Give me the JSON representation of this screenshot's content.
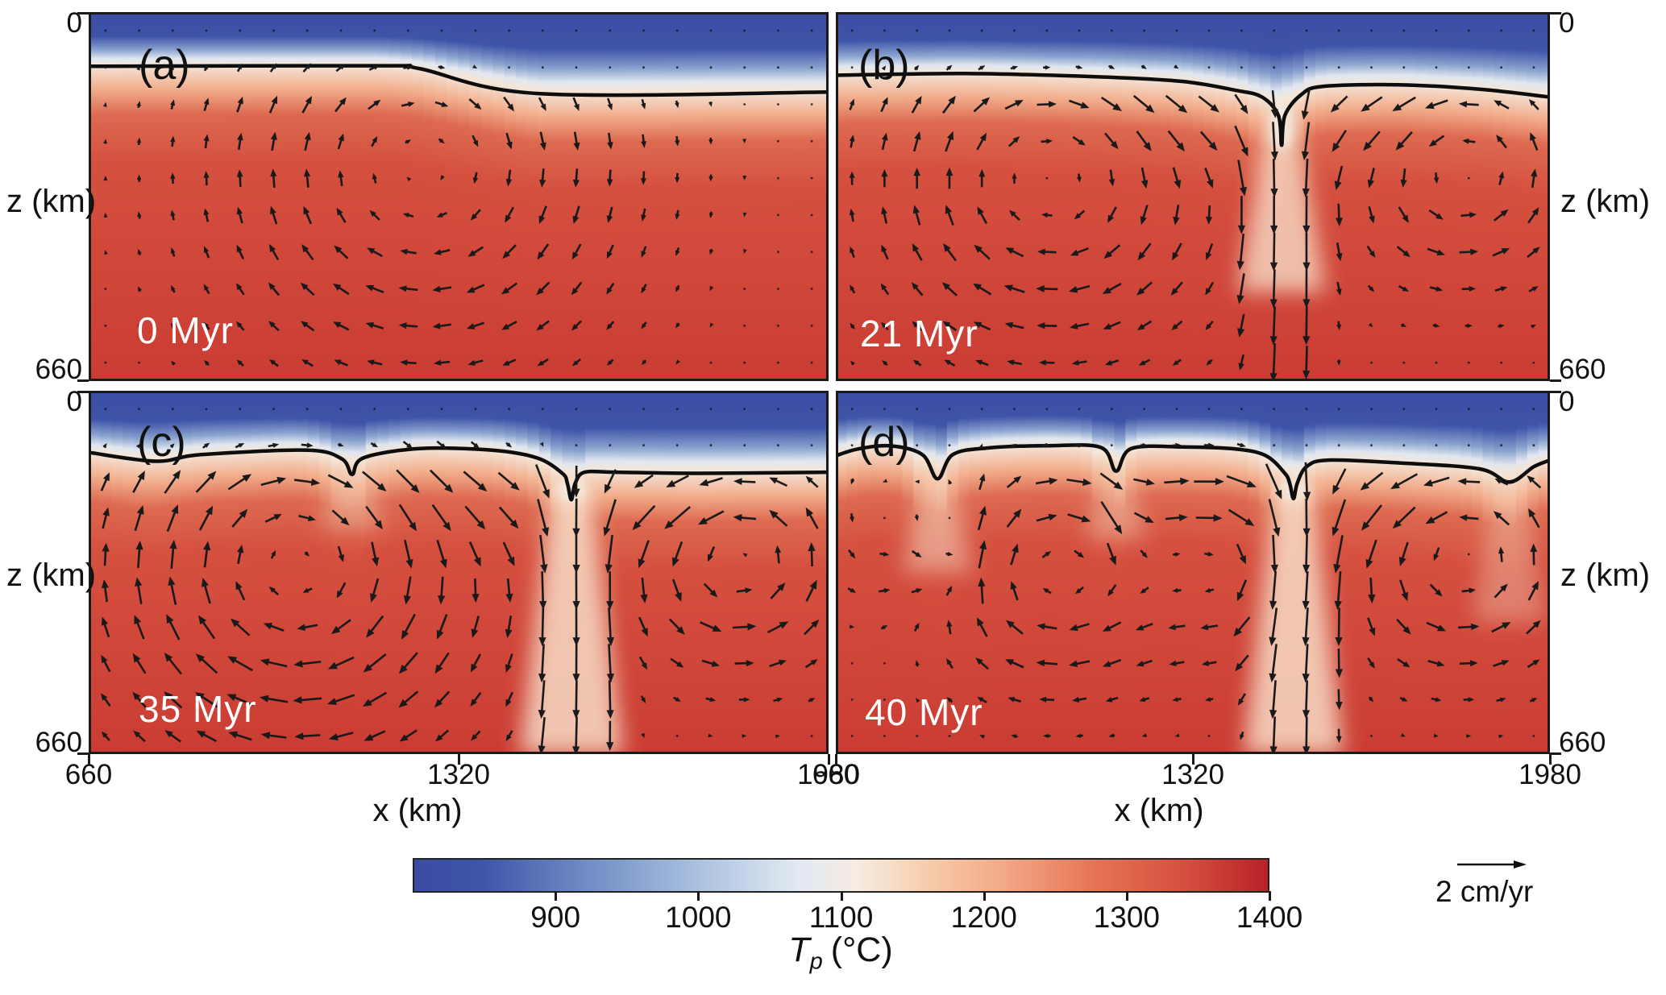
{
  "chart_data": {
    "type": "heatmap",
    "title": "",
    "x_axis": {
      "label": "x (km)",
      "ticks": [
        660,
        1320,
        1980
      ],
      "range": [
        660,
        1980
      ]
    },
    "z_axis": {
      "label": "z (km)",
      "ticks": [
        0,
        660
      ],
      "range": [
        0,
        660
      ]
    },
    "colorbar": {
      "label_symbol": "T",
      "label_subscript": "p",
      "label_units": "(°C)",
      "ticks": [
        900,
        1000,
        1100,
        1200,
        1300,
        1400
      ],
      "range": [
        800,
        1400
      ],
      "stops": [
        [
          0,
          "#3a4ba3"
        ],
        [
          0.08,
          "#3f55a9"
        ],
        [
          0.2,
          "#6f8cc4"
        ],
        [
          0.33,
          "#a9c0de"
        ],
        [
          0.45,
          "#e2eaf2"
        ],
        [
          0.52,
          "#f6ece1"
        ],
        [
          0.6,
          "#f7cdab"
        ],
        [
          0.7,
          "#f2a482"
        ],
        [
          0.8,
          "#e57355"
        ],
        [
          0.9,
          "#d7503f"
        ],
        [
          1,
          "#b92127"
        ]
      ]
    },
    "velocity_scale": {
      "label": "2 cm/yr",
      "value_cm_per_yr": 2
    },
    "palette": {
      "deep_blue": "#3b4da4",
      "blue2": "#3f53a8",
      "light_blue": "#8aa3cf",
      "pale_blue": "#dfe7f0",
      "cream": "#f4e6d8",
      "pale_orange": "#f2ae8d",
      "orange_red": "#dd6a50",
      "red": "#d5503f",
      "deep_red": "#ca3c33",
      "drip": "#f7dcc6",
      "notch": "#f3ece2",
      "contour": "#0d0d0d",
      "arrow": "#1a1a1a",
      "frame": "#1a1a1a"
    },
    "panels": [
      {
        "id": "a",
        "label": "(a)",
        "time": "0 Myr",
        "row": 0,
        "col": 0,
        "contour_km": [
          [
            660,
            97
          ],
          [
            1180,
            96
          ],
          [
            1250,
            101
          ],
          [
            1465,
            146
          ],
          [
            1980,
            143
          ]
        ],
        "drips_km": [],
        "cells": [
          [
            0.45,
            0.42,
            0.52,
            0.8
          ]
        ],
        "sinks": []
      },
      {
        "id": "b",
        "label": "(b)",
        "time": "21 Myr",
        "row": 0,
        "col": 1,
        "contour_km": [
          [
            660,
            113
          ],
          [
            900,
            110
          ],
          [
            1150,
            116
          ],
          [
            1300,
            124
          ],
          [
            1400,
            140
          ],
          [
            1448,
            152
          ],
          [
            1478,
            185
          ],
          [
            1484,
            238
          ],
          [
            1490,
            185
          ],
          [
            1520,
            148
          ],
          [
            1560,
            133
          ],
          [
            1700,
            130
          ],
          [
            1850,
            138
          ],
          [
            1980,
            152
          ]
        ],
        "drips_km": [
          [
            1484,
            238,
            500,
            58,
            0.8
          ]
        ],
        "cells": [
          [
            0.3,
            0.45,
            0.45,
            0.9
          ],
          [
            0.88,
            0.42,
            0.3,
            -0.8
          ]
        ],
        "sinks": [
          [
            0.627,
            0.28,
            0.95,
            0.05,
            1.7
          ]
        ]
      },
      {
        "id": "c",
        "label": "(c)",
        "time": "35 Myr",
        "row": 1,
        "col": 0,
        "contour_km": [
          [
            660,
            112
          ],
          [
            780,
            128
          ],
          [
            860,
            116
          ],
          [
            1050,
            108
          ],
          [
            1112,
            124
          ],
          [
            1130,
            152
          ],
          [
            1150,
            122
          ],
          [
            1250,
            105
          ],
          [
            1380,
            108
          ],
          [
            1460,
            122
          ],
          [
            1505,
            150
          ],
          [
            1514,
            168
          ],
          [
            1521,
            198
          ],
          [
            1528,
            168
          ],
          [
            1545,
            148
          ],
          [
            1600,
            148
          ],
          [
            1750,
            150
          ],
          [
            1980,
            148
          ]
        ],
        "drips_km": [
          [
            1521,
            198,
            660,
            66,
            0.85
          ],
          [
            1130,
            152,
            250,
            40,
            0.4
          ]
        ],
        "cells": [
          [
            0.28,
            0.48,
            0.48,
            1.2
          ],
          [
            0.88,
            0.45,
            0.28,
            -1.0
          ]
        ],
        "sinks": [
          [
            0.657,
            0.3,
            1.0,
            0.05,
            2.0
          ]
        ]
      },
      {
        "id": "d",
        "label": "(d)",
        "time": "40 Myr",
        "row": 1,
        "col": 1,
        "contour_km": [
          [
            660,
            118
          ],
          [
            700,
            106
          ],
          [
            760,
            100
          ],
          [
            820,
            116
          ],
          [
            848,
            160
          ],
          [
            876,
            116
          ],
          [
            940,
            104
          ],
          [
            1050,
            100
          ],
          [
            1150,
            103
          ],
          [
            1178,
            146
          ],
          [
            1206,
            105
          ],
          [
            1300,
            102
          ],
          [
            1400,
            106
          ],
          [
            1455,
            118
          ],
          [
            1490,
            150
          ],
          [
            1499,
            168
          ],
          [
            1506,
            196
          ],
          [
            1513,
            168
          ],
          [
            1530,
            138
          ],
          [
            1570,
            126
          ],
          [
            1700,
            131
          ],
          [
            1850,
            142
          ],
          [
            1905,
            166
          ],
          [
            1950,
            138
          ],
          [
            1980,
            126
          ]
        ],
        "drips_km": [
          [
            1506,
            196,
            660,
            66,
            0.85
          ],
          [
            848,
            160,
            330,
            46,
            0.5
          ],
          [
            1178,
            146,
            270,
            40,
            0.4
          ],
          [
            1905,
            166,
            420,
            48,
            0.35
          ]
        ],
        "cells": [
          [
            0.1,
            0.4,
            0.22,
            -0.5
          ],
          [
            0.3,
            0.5,
            0.3,
            0.9
          ],
          [
            0.55,
            0.45,
            0.28,
            0.7
          ],
          [
            0.88,
            0.45,
            0.3,
            -0.9
          ]
        ],
        "sinks": [
          [
            0.641,
            0.3,
            1.0,
            0.05,
            1.9
          ],
          [
            0.142,
            0.28,
            0.55,
            0.04,
            0.7
          ],
          [
            0.393,
            0.25,
            0.45,
            0.035,
            0.5
          ]
        ]
      }
    ]
  }
}
